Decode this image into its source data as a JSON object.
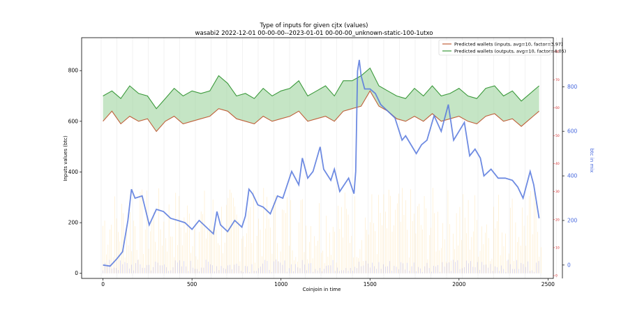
{
  "chart_data": {
    "type": "line",
    "title": "Type of inputs for given cjtx (values)",
    "subtitle": "wasabi2 2022-12-01 00-00-00--2023-01-01 00-00-00_unknown-static-100-1utxo",
    "xlabel": "Coinjoin in time",
    "ylabel": "Inputs values (btc)",
    "y2label": "btc in mix",
    "xlim": [
      -120,
      2530
    ],
    "ylim": [
      -20,
      930
    ],
    "y2lim": [
      -60,
      1020
    ],
    "y3lim": [
      -1,
      85
    ],
    "xticks": [
      0,
      500,
      1000,
      1500,
      2000,
      2500
    ],
    "yticks": [
      0,
      200,
      400,
      600,
      800
    ],
    "y2ticks": [
      0,
      200,
      400,
      600,
      800
    ],
    "y3ticks": [
      0,
      10,
      20,
      30,
      40,
      50,
      60,
      70,
      80
    ],
    "grid": "vertical",
    "legend_position": "top-right",
    "legend": [
      "Predicted wallets (inputs, avg=10, factor=3.97)",
      "Predicted wallets (outputs, avg=10, factor=4.05)"
    ],
    "colors": {
      "inputs": "#c0603a",
      "outputs": "#3c9a3c",
      "fill": "#9fd39f",
      "btc_in_mix": "#5577dd",
      "right_axis_red": "#d62728",
      "bars_orange": "#ffd27a",
      "bars_blue": "#8888ee"
    },
    "series": [
      {
        "name": "Predicted wallets (inputs, avg=10, factor=3.97)",
        "axis": "left",
        "x": [
          0,
          50,
          100,
          150,
          200,
          250,
          300,
          350,
          400,
          450,
          500,
          550,
          600,
          650,
          700,
          750,
          800,
          850,
          900,
          950,
          1000,
          1050,
          1100,
          1150,
          1200,
          1250,
          1300,
          1350,
          1400,
          1450,
          1500,
          1550,
          1600,
          1650,
          1700,
          1750,
          1800,
          1850,
          1900,
          1950,
          2000,
          2050,
          2100,
          2150,
          2200,
          2250,
          2300,
          2350,
          2400,
          2450
        ],
        "values": [
          600,
          640,
          590,
          620,
          600,
          610,
          560,
          600,
          620,
          590,
          600,
          610,
          620,
          650,
          640,
          610,
          600,
          590,
          620,
          600,
          610,
          620,
          640,
          600,
          610,
          620,
          600,
          640,
          650,
          660,
          720,
          660,
          640,
          610,
          600,
          620,
          600,
          630,
          600,
          610,
          620,
          600,
          590,
          620,
          630,
          600,
          610,
          580,
          610,
          640
        ]
      },
      {
        "name": "Predicted wallets (outputs, avg=10, factor=4.05)",
        "axis": "left",
        "x": [
          0,
          50,
          100,
          150,
          200,
          250,
          300,
          350,
          400,
          450,
          500,
          550,
          600,
          650,
          700,
          750,
          800,
          850,
          900,
          950,
          1000,
          1050,
          1100,
          1150,
          1200,
          1250,
          1300,
          1350,
          1400,
          1450,
          1500,
          1550,
          1600,
          1650,
          1700,
          1750,
          1800,
          1850,
          1900,
          1950,
          2000,
          2050,
          2100,
          2150,
          2200,
          2250,
          2300,
          2350,
          2400,
          2450
        ],
        "values": [
          700,
          720,
          690,
          740,
          710,
          700,
          650,
          690,
          730,
          700,
          720,
          710,
          720,
          780,
          750,
          700,
          710,
          690,
          730,
          700,
          720,
          730,
          760,
          700,
          720,
          740,
          700,
          760,
          760,
          780,
          810,
          740,
          720,
          700,
          690,
          730,
          700,
          740,
          700,
          710,
          730,
          700,
          690,
          730,
          740,
          700,
          720,
          680,
          710,
          740
        ]
      },
      {
        "name": "btc in mix",
        "axis": "right",
        "x": [
          0,
          40,
          80,
          110,
          140,
          160,
          180,
          220,
          260,
          300,
          340,
          380,
          420,
          460,
          500,
          540,
          580,
          620,
          640,
          660,
          700,
          740,
          780,
          800,
          820,
          840,
          870,
          900,
          940,
          980,
          1010,
          1060,
          1100,
          1120,
          1150,
          1180,
          1220,
          1240,
          1280,
          1300,
          1330,
          1380,
          1410,
          1420,
          1430,
          1440,
          1450,
          1470,
          1500,
          1530,
          1560,
          1600,
          1640,
          1680,
          1700,
          1760,
          1790,
          1820,
          1860,
          1900,
          1940,
          1970,
          2000,
          2030,
          2060,
          2090,
          2120,
          2140,
          2180,
          2220,
          2260,
          2300,
          2330,
          2360,
          2400,
          2420,
          2450
        ],
        "values": [
          0,
          -5,
          30,
          60,
          200,
          340,
          300,
          310,
          180,
          250,
          240,
          210,
          200,
          190,
          160,
          200,
          170,
          140,
          240,
          180,
          150,
          200,
          170,
          220,
          340,
          320,
          270,
          260,
          230,
          310,
          300,
          420,
          360,
          480,
          390,
          420,
          530,
          430,
          380,
          430,
          330,
          390,
          320,
          420,
          870,
          920,
          850,
          790,
          790,
          770,
          720,
          690,
          660,
          560,
          580,
          500,
          540,
          560,
          670,
          600,
          720,
          560,
          600,
          640,
          490,
          520,
          480,
          400,
          430,
          390,
          390,
          380,
          350,
          300,
          420,
          360,
          210
        ]
      }
    ]
  }
}
